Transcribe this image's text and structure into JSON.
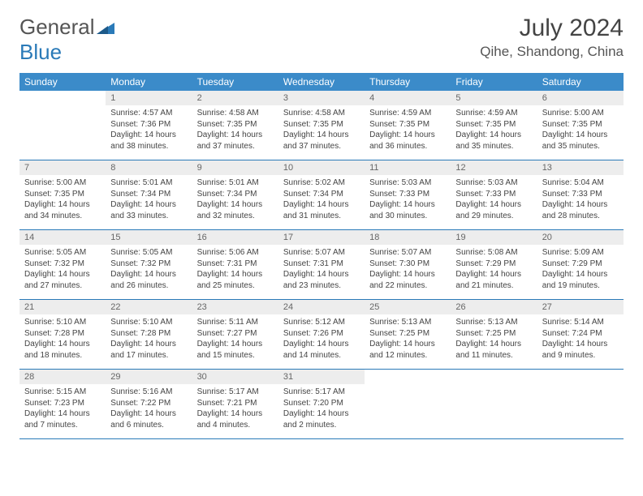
{
  "brand": {
    "part1": "General",
    "part2": "Blue"
  },
  "title": "July 2024",
  "location": "Qihe, Shandong, China",
  "colors": {
    "header_bg": "#3b8bc9",
    "header_text": "#ffffff",
    "daynum_bg": "#ededed",
    "border": "#2a7ab8",
    "text": "#444444",
    "logo_gray": "#555555",
    "logo_blue": "#2a7ab8"
  },
  "weekdays": [
    "Sunday",
    "Monday",
    "Tuesday",
    "Wednesday",
    "Thursday",
    "Friday",
    "Saturday"
  ],
  "weeks": [
    {
      "days": [
        null,
        {
          "n": "1",
          "sr": "Sunrise: 4:57 AM",
          "ss": "Sunset: 7:36 PM",
          "dl": "Daylight: 14 hours and 38 minutes."
        },
        {
          "n": "2",
          "sr": "Sunrise: 4:58 AM",
          "ss": "Sunset: 7:35 PM",
          "dl": "Daylight: 14 hours and 37 minutes."
        },
        {
          "n": "3",
          "sr": "Sunrise: 4:58 AM",
          "ss": "Sunset: 7:35 PM",
          "dl": "Daylight: 14 hours and 37 minutes."
        },
        {
          "n": "4",
          "sr": "Sunrise: 4:59 AM",
          "ss": "Sunset: 7:35 PM",
          "dl": "Daylight: 14 hours and 36 minutes."
        },
        {
          "n": "5",
          "sr": "Sunrise: 4:59 AM",
          "ss": "Sunset: 7:35 PM",
          "dl": "Daylight: 14 hours and 35 minutes."
        },
        {
          "n": "6",
          "sr": "Sunrise: 5:00 AM",
          "ss": "Sunset: 7:35 PM",
          "dl": "Daylight: 14 hours and 35 minutes."
        }
      ]
    },
    {
      "days": [
        {
          "n": "7",
          "sr": "Sunrise: 5:00 AM",
          "ss": "Sunset: 7:35 PM",
          "dl": "Daylight: 14 hours and 34 minutes."
        },
        {
          "n": "8",
          "sr": "Sunrise: 5:01 AM",
          "ss": "Sunset: 7:34 PM",
          "dl": "Daylight: 14 hours and 33 minutes."
        },
        {
          "n": "9",
          "sr": "Sunrise: 5:01 AM",
          "ss": "Sunset: 7:34 PM",
          "dl": "Daylight: 14 hours and 32 minutes."
        },
        {
          "n": "10",
          "sr": "Sunrise: 5:02 AM",
          "ss": "Sunset: 7:34 PM",
          "dl": "Daylight: 14 hours and 31 minutes."
        },
        {
          "n": "11",
          "sr": "Sunrise: 5:03 AM",
          "ss": "Sunset: 7:33 PM",
          "dl": "Daylight: 14 hours and 30 minutes."
        },
        {
          "n": "12",
          "sr": "Sunrise: 5:03 AM",
          "ss": "Sunset: 7:33 PM",
          "dl": "Daylight: 14 hours and 29 minutes."
        },
        {
          "n": "13",
          "sr": "Sunrise: 5:04 AM",
          "ss": "Sunset: 7:33 PM",
          "dl": "Daylight: 14 hours and 28 minutes."
        }
      ]
    },
    {
      "days": [
        {
          "n": "14",
          "sr": "Sunrise: 5:05 AM",
          "ss": "Sunset: 7:32 PM",
          "dl": "Daylight: 14 hours and 27 minutes."
        },
        {
          "n": "15",
          "sr": "Sunrise: 5:05 AM",
          "ss": "Sunset: 7:32 PM",
          "dl": "Daylight: 14 hours and 26 minutes."
        },
        {
          "n": "16",
          "sr": "Sunrise: 5:06 AM",
          "ss": "Sunset: 7:31 PM",
          "dl": "Daylight: 14 hours and 25 minutes."
        },
        {
          "n": "17",
          "sr": "Sunrise: 5:07 AM",
          "ss": "Sunset: 7:31 PM",
          "dl": "Daylight: 14 hours and 23 minutes."
        },
        {
          "n": "18",
          "sr": "Sunrise: 5:07 AM",
          "ss": "Sunset: 7:30 PM",
          "dl": "Daylight: 14 hours and 22 minutes."
        },
        {
          "n": "19",
          "sr": "Sunrise: 5:08 AM",
          "ss": "Sunset: 7:29 PM",
          "dl": "Daylight: 14 hours and 21 minutes."
        },
        {
          "n": "20",
          "sr": "Sunrise: 5:09 AM",
          "ss": "Sunset: 7:29 PM",
          "dl": "Daylight: 14 hours and 19 minutes."
        }
      ]
    },
    {
      "days": [
        {
          "n": "21",
          "sr": "Sunrise: 5:10 AM",
          "ss": "Sunset: 7:28 PM",
          "dl": "Daylight: 14 hours and 18 minutes."
        },
        {
          "n": "22",
          "sr": "Sunrise: 5:10 AM",
          "ss": "Sunset: 7:28 PM",
          "dl": "Daylight: 14 hours and 17 minutes."
        },
        {
          "n": "23",
          "sr": "Sunrise: 5:11 AM",
          "ss": "Sunset: 7:27 PM",
          "dl": "Daylight: 14 hours and 15 minutes."
        },
        {
          "n": "24",
          "sr": "Sunrise: 5:12 AM",
          "ss": "Sunset: 7:26 PM",
          "dl": "Daylight: 14 hours and 14 minutes."
        },
        {
          "n": "25",
          "sr": "Sunrise: 5:13 AM",
          "ss": "Sunset: 7:25 PM",
          "dl": "Daylight: 14 hours and 12 minutes."
        },
        {
          "n": "26",
          "sr": "Sunrise: 5:13 AM",
          "ss": "Sunset: 7:25 PM",
          "dl": "Daylight: 14 hours and 11 minutes."
        },
        {
          "n": "27",
          "sr": "Sunrise: 5:14 AM",
          "ss": "Sunset: 7:24 PM",
          "dl": "Daylight: 14 hours and 9 minutes."
        }
      ]
    },
    {
      "days": [
        {
          "n": "28",
          "sr": "Sunrise: 5:15 AM",
          "ss": "Sunset: 7:23 PM",
          "dl": "Daylight: 14 hours and 7 minutes."
        },
        {
          "n": "29",
          "sr": "Sunrise: 5:16 AM",
          "ss": "Sunset: 7:22 PM",
          "dl": "Daylight: 14 hours and 6 minutes."
        },
        {
          "n": "30",
          "sr": "Sunrise: 5:17 AM",
          "ss": "Sunset: 7:21 PM",
          "dl": "Daylight: 14 hours and 4 minutes."
        },
        {
          "n": "31",
          "sr": "Sunrise: 5:17 AM",
          "ss": "Sunset: 7:20 PM",
          "dl": "Daylight: 14 hours and 2 minutes."
        },
        null,
        null,
        null
      ]
    }
  ]
}
